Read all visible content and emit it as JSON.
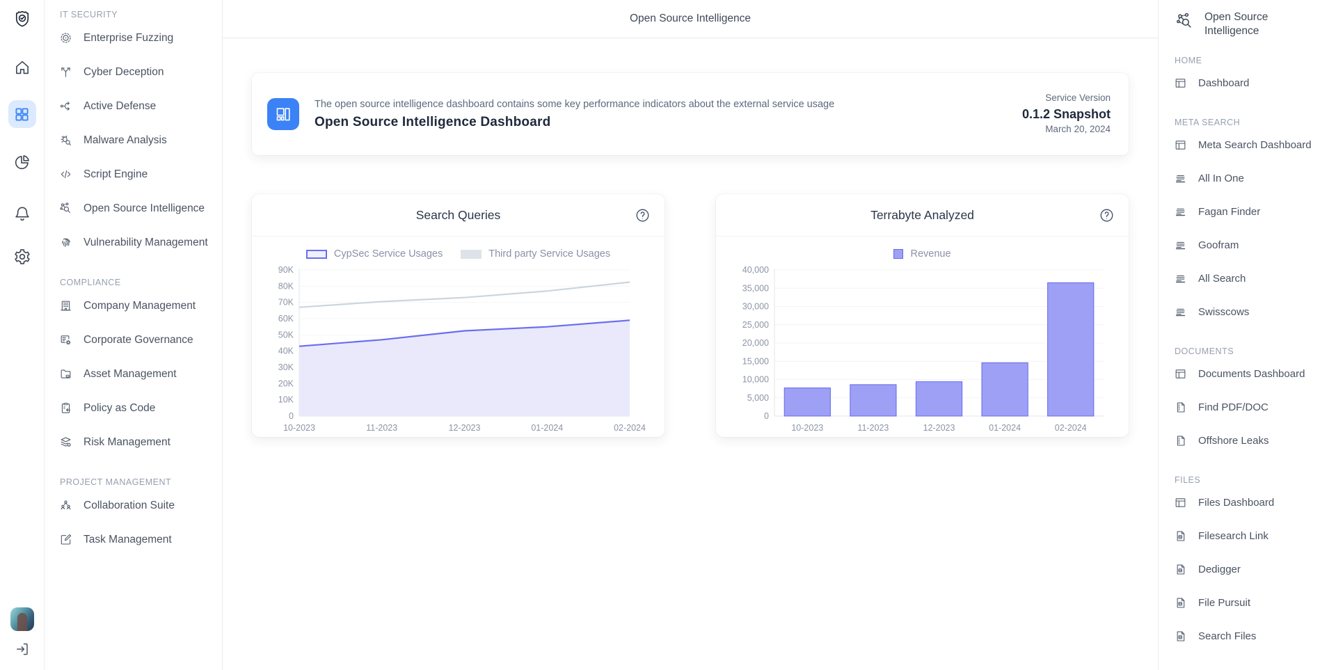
{
  "header": {
    "title": "Open Source Intelligence"
  },
  "icon_rail": {
    "top": [
      {
        "name": "logo-shield-icon",
        "interactable": false,
        "active": false
      },
      {
        "name": "home-icon",
        "interactable": true,
        "active": false
      },
      {
        "name": "grid-icon",
        "interactable": true,
        "active": true
      },
      {
        "name": "pie-chart-icon",
        "interactable": true,
        "active": false
      },
      {
        "name": "bell-icon",
        "interactable": true,
        "active": false
      },
      {
        "name": "gear-icon",
        "interactable": true,
        "active": false
      }
    ],
    "bottom": [
      {
        "name": "user-avatar",
        "interactable": true
      },
      {
        "name": "logout-icon",
        "interactable": true
      }
    ]
  },
  "left_sidebar": {
    "sections": [
      {
        "label": "IT SECURITY",
        "items": [
          {
            "label": "Enterprise Fuzzing",
            "icon": "target-icon"
          },
          {
            "label": "Cyber Deception",
            "icon": "branch-icon"
          },
          {
            "label": "Active Defense",
            "icon": "flow-arrows-icon"
          },
          {
            "label": "Malware Analysis",
            "icon": "bug-search-icon"
          },
          {
            "label": "Script Engine",
            "icon": "code-icon"
          },
          {
            "label": "Open Source Intelligence",
            "icon": "network-search-icon"
          },
          {
            "label": "Vulnerability Management",
            "icon": "fingerprint-icon"
          }
        ]
      },
      {
        "label": "COMPLIANCE",
        "items": [
          {
            "label": "Company Management",
            "icon": "building-icon"
          },
          {
            "label": "Corporate Governance",
            "icon": "list-gear-icon"
          },
          {
            "label": "Asset Management",
            "icon": "folder-icon"
          },
          {
            "label": "Policy as Code",
            "icon": "clipboard-icon"
          },
          {
            "label": "Risk Management",
            "icon": "layers-icon"
          }
        ]
      },
      {
        "label": "PROJECT MANAGEMENT",
        "items": [
          {
            "label": "Collaboration Suite",
            "icon": "people-icon"
          },
          {
            "label": "Task Management",
            "icon": "edit-icon"
          }
        ]
      }
    ]
  },
  "info_card": {
    "description": "The open source intelligence dashboard contains some key performance indicators about the external service usage",
    "title": "Open Source Intelligence Dashboard",
    "icon": "dashboard-layout-icon",
    "version_label": "Service Version",
    "version": "0.1.2 Snapshot",
    "date": "March 20, 2024"
  },
  "chart_data": [
    {
      "type": "area",
      "title": "Search Queries",
      "categories": [
        "10-2023",
        "11-2023",
        "12-2023",
        "01-2024",
        "02-2024"
      ],
      "series": [
        {
          "name": "CypSec Service Usages",
          "values": [
            43000,
            47000,
            52500,
            55000,
            59000
          ],
          "style": "purple-area"
        },
        {
          "name": "Third party Service Usages",
          "values": [
            67000,
            70500,
            73000,
            77000,
            82500
          ],
          "style": "gray-line"
        }
      ],
      "ylim": [
        0,
        90000
      ],
      "ytick_step": 10000,
      "ytick_format": "K",
      "grid": "horizontal",
      "legend_position": "top"
    },
    {
      "type": "bar",
      "title": "Terrabyte Analyzed",
      "categories": [
        "10-2023",
        "11-2023",
        "12-2023",
        "01-2024",
        "02-2024"
      ],
      "series": [
        {
          "name": "Revenue",
          "values": [
            7700,
            8600,
            9400,
            14600,
            36500
          ],
          "style": "purple-bar"
        }
      ],
      "ylim": [
        0,
        40000
      ],
      "ytick_step": 5000,
      "ytick_format": "comma",
      "grid": "horizontal",
      "legend_position": "top"
    }
  ],
  "right_sidebar": {
    "title": "Open Source Intelligence",
    "icon": "network-search-icon",
    "sections": [
      {
        "label": "HOME",
        "items": [
          {
            "label": "Dashboard",
            "icon": "dashboard-icon"
          }
        ]
      },
      {
        "label": "META SEARCH",
        "items": [
          {
            "label": "Meta Search Dashboard",
            "icon": "dashboard-icon"
          },
          {
            "label": "All In One",
            "icon": "list-icon"
          },
          {
            "label": "Fagan Finder",
            "icon": "list-icon"
          },
          {
            "label": "Goofram",
            "icon": "list-icon"
          },
          {
            "label": "All Search",
            "icon": "list-icon"
          },
          {
            "label": "Swisscows",
            "icon": "list-icon"
          }
        ]
      },
      {
        "label": "DOCUMENTS",
        "items": [
          {
            "label": "Documents Dashboard",
            "icon": "dashboard-icon"
          },
          {
            "label": "Find PDF/DOC",
            "icon": "document-icon"
          },
          {
            "label": "Offshore Leaks",
            "icon": "document-icon"
          }
        ]
      },
      {
        "label": "FILES",
        "items": [
          {
            "label": "Files Dashboard",
            "icon": "dashboard-icon"
          },
          {
            "label": "Filesearch Link",
            "icon": "file-search-icon"
          },
          {
            "label": "Dedigger",
            "icon": "file-search-icon"
          },
          {
            "label": "File Pursuit",
            "icon": "file-search-icon"
          },
          {
            "label": "Search Files",
            "icon": "file-search-icon"
          }
        ]
      }
    ]
  },
  "colors": {
    "accent_blue": "#3b82f6",
    "rail_active_bg": "#dbeafe",
    "purple_line": "#6a6df0",
    "purple_area_fill": "#e9e9fb",
    "legend_purple_box_bg": "#f0effd",
    "gray_line": "#ccd5dd",
    "legend_gray_box": "#dde3e9",
    "bar_fill": "#9da0f5",
    "bar_border": "#6568ea",
    "axis_text": "#8b94a4",
    "grid_line": "#f3f4f6",
    "axis_line": "#e2e6eb"
  }
}
